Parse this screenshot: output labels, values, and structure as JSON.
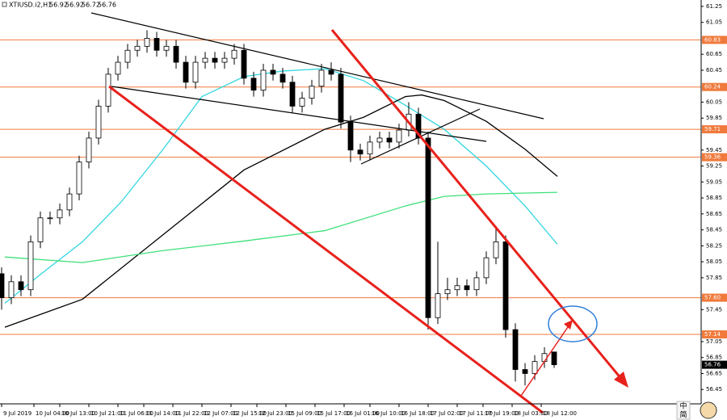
{
  "chart_data": {
    "type": "candlestick",
    "symbol": "XTIUSD.i2,H1",
    "x": [
      0,
      3,
      6,
      9,
      12,
      15,
      18,
      21,
      24,
      27,
      30,
      33,
      36,
      39,
      42,
      45,
      48,
      51,
      54,
      57,
      60,
      63,
      66,
      69,
      72,
      75,
      78,
      81,
      84,
      87,
      90,
      93,
      96,
      99,
      102,
      105,
      108,
      111,
      114,
      117,
      120,
      123,
      126,
      129,
      132,
      135,
      138,
      141,
      144,
      147,
      150,
      153,
      156,
      159,
      162,
      165,
      168,
      171
    ],
    "open": [
      57.9,
      57.6,
      57.8,
      57.7,
      58.3,
      58.6,
      58.6,
      58.7,
      58.9,
      59.3,
      59.6,
      60.0,
      60.4,
      60.55,
      60.7,
      60.75,
      60.85,
      60.7,
      60.75,
      60.55,
      60.3,
      60.55,
      60.6,
      60.55,
      60.6,
      60.7,
      60.35,
      60.2,
      60.45,
      60.4,
      60.3,
      60.0,
      60.1,
      60.25,
      60.45,
      60.4,
      59.8,
      59.45,
      59.4,
      59.55,
      59.6,
      59.55,
      59.7,
      59.9,
      59.6,
      57.35,
      57.65,
      57.7,
      57.75,
      57.7,
      57.85,
      58.1,
      58.3,
      57.2,
      56.7,
      56.65,
      56.8,
      56.92
    ],
    "high": [
      57.98,
      57.88,
      57.88,
      58.38,
      58.68,
      58.68,
      58.78,
      58.98,
      59.38,
      59.68,
      60.08,
      60.48,
      60.63,
      60.78,
      60.83,
      60.95,
      60.93,
      60.83,
      60.83,
      60.63,
      60.63,
      60.68,
      60.68,
      60.68,
      60.78,
      60.78,
      60.43,
      60.53,
      60.53,
      60.48,
      60.38,
      60.18,
      60.33,
      60.53,
      60.55,
      60.48,
      59.88,
      59.53,
      59.63,
      59.68,
      59.68,
      59.78,
      60.05,
      59.98,
      59.68,
      58.3,
      57.85,
      57.85,
      57.83,
      57.93,
      58.18,
      58.5,
      58.38,
      57.28,
      56.78,
      56.88,
      56.98,
      56.92
    ],
    "low": [
      57.45,
      57.52,
      57.62,
      57.62,
      58.22,
      58.52,
      58.52,
      58.62,
      58.82,
      59.22,
      59.52,
      59.92,
      60.32,
      60.47,
      60.62,
      60.67,
      60.62,
      60.62,
      60.47,
      60.22,
      60.22,
      60.47,
      60.47,
      60.47,
      60.52,
      60.27,
      60.12,
      60.12,
      60.32,
      60.22,
      59.92,
      59.92,
      60.02,
      60.17,
      60.32,
      59.72,
      59.3,
      59.32,
      59.32,
      59.47,
      59.47,
      59.47,
      59.62,
      59.52,
      57.2,
      57.27,
      57.57,
      57.62,
      57.62,
      57.62,
      57.77,
      58.02,
      57.1,
      56.55,
      56.5,
      56.57,
      56.72,
      56.72
    ],
    "close": [
      57.6,
      57.8,
      57.7,
      58.3,
      58.6,
      58.6,
      58.7,
      58.9,
      59.3,
      59.6,
      60.0,
      60.4,
      60.55,
      60.7,
      60.75,
      60.85,
      60.7,
      60.75,
      60.55,
      60.3,
      60.55,
      60.6,
      60.55,
      60.6,
      60.7,
      60.35,
      60.2,
      60.45,
      60.4,
      60.3,
      60.0,
      60.1,
      60.25,
      60.45,
      60.4,
      59.8,
      59.45,
      59.4,
      59.55,
      59.6,
      59.55,
      59.7,
      59.9,
      59.6,
      57.35,
      57.65,
      57.7,
      57.75,
      57.7,
      57.85,
      58.1,
      58.3,
      57.2,
      56.7,
      56.65,
      56.8,
      56.9,
      56.76
    ],
    "up_color": "#ffffff",
    "down_color": "#000000",
    "lines": [
      {
        "color": "#33d6e0",
        "x": [
          1,
          12,
          25,
          37,
          50,
          62,
          75,
          87,
          100,
          112,
          125,
          137,
          150,
          162,
          172
        ],
        "values": [
          57.53,
          57.89,
          58.3,
          58.8,
          59.46,
          60.12,
          60.37,
          60.44,
          60.47,
          60.32,
          60.01,
          59.71,
          59.25,
          58.75,
          58.27
        ]
      },
      {
        "color": "#000000",
        "x": [
          1,
          25,
          50,
          75,
          100,
          112,
          125,
          130,
          137,
          150,
          162,
          172
        ],
        "values": [
          57.23,
          57.58,
          58.39,
          59.2,
          59.71,
          59.86,
          60.12,
          60.14,
          60.07,
          59.81,
          59.46,
          59.12
        ]
      },
      {
        "color": "#3ee07a",
        "x": [
          1,
          25,
          50,
          75,
          100,
          125,
          137,
          150,
          172
        ],
        "values": [
          58.11,
          58.04,
          58.19,
          58.31,
          58.44,
          58.75,
          58.87,
          58.9,
          58.92
        ]
      }
    ],
    "levels": [
      60.83,
      60.24,
      59.71,
      59.36,
      {
        "value": 57.6,
        "label": "57.60"
      },
      57.14
    ],
    "level_color": "#f07a3c",
    "xlim": [
      -0.5,
      216.5
    ],
    "xticks": [
      {
        "value": 0,
        "label": "9 Jul 2019"
      },
      {
        "value": 10,
        "label": "10 Jul 04:00"
      },
      {
        "value": 18,
        "label": "10 Jul 13:00"
      },
      {
        "value": 27,
        "label": "10 Jul 21:00"
      },
      {
        "value": 36,
        "label": "11 Jul 06:00"
      },
      {
        "value": 44,
        "label": "11 Jul 14:00"
      },
      {
        "value": 53,
        "label": "11 Jul 22:00"
      },
      {
        "value": 62,
        "label": "12 Jul 07:00"
      },
      {
        "value": 71,
        "label": "12 Jul 15:00"
      },
      {
        "value": 79,
        "label": "12 Jul 23:00"
      },
      {
        "value": 88,
        "label": "15 Jul 09:00"
      },
      {
        "value": 97,
        "label": "15 Jul 17:00"
      },
      {
        "value": 106,
        "label": "16 Jul 01:00"
      },
      {
        "value": 114,
        "label": "16 Jul 10:00"
      },
      {
        "value": 123,
        "label": "16 Jul 18:00"
      },
      {
        "value": 132,
        "label": "17 Jul 02:00"
      },
      {
        "value": 141,
        "label": "17 Jul 11:00"
      },
      {
        "value": 149,
        "label": "17 Jul 19:00"
      },
      {
        "value": 158,
        "label": "18 Jul 03:00"
      },
      {
        "value": 167,
        "label": "18 Jul 12:00"
      }
    ],
    "ylim": [
      56.27,
      61.33
    ],
    "yticks": [
      61.25,
      61.05,
      60.65,
      60.45,
      60.05,
      59.85,
      59.45,
      59.25,
      59.05,
      58.85,
      58.65,
      58.45,
      58.25,
      58.05,
      57.85,
      57.45,
      57.05,
      56.85,
      56.65,
      56.45
    ],
    "ime": [
      "中",
      "简"
    ]
  }
}
